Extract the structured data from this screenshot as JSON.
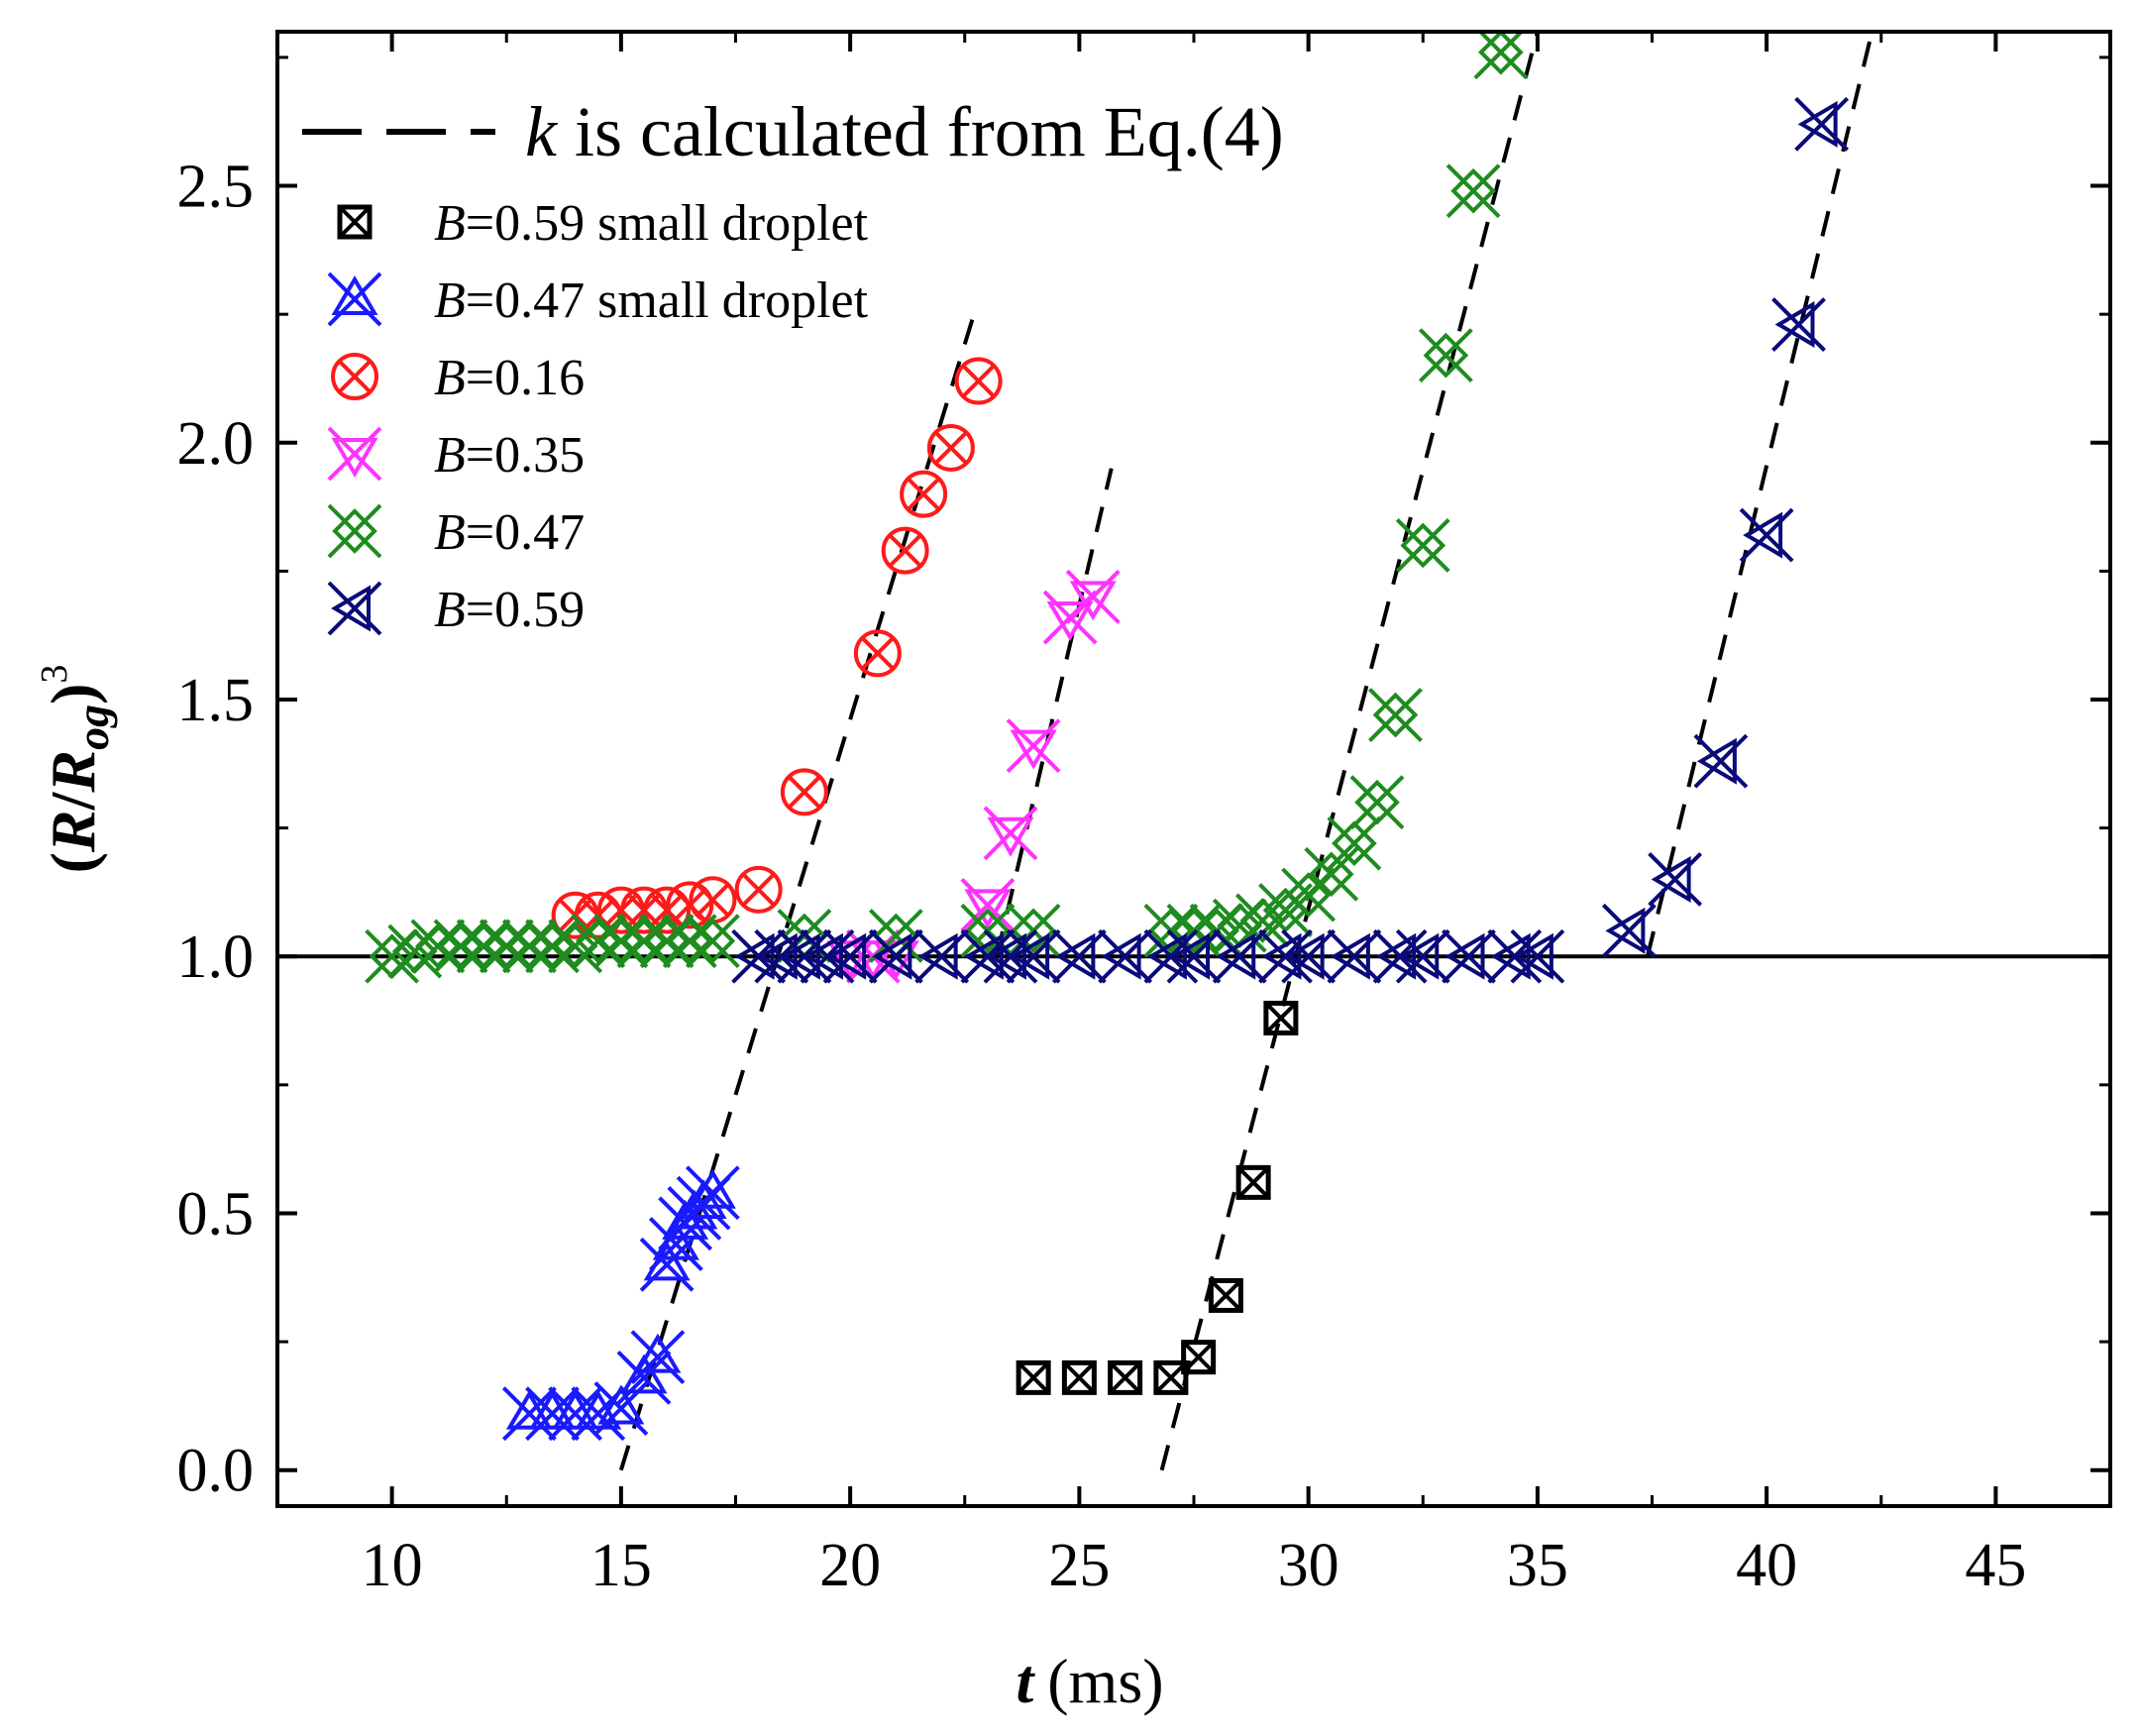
{
  "chart_data": {
    "type": "scatter",
    "xlabel": {
      "var": "t",
      "unit": "(ms)"
    },
    "ylabel": {
      "open": "(",
      "var1": "R",
      "slash": "/",
      "var2": "R",
      "sub": "og",
      "close": ")",
      "sup": "3"
    },
    "xlim": [
      7.5,
      47.5
    ],
    "ylim": [
      -0.07,
      2.8
    ],
    "xticks": [
      10,
      15,
      20,
      25,
      30,
      35,
      40,
      45
    ],
    "xtick_labels": [
      "10",
      "15",
      "20",
      "25",
      "30",
      "35",
      "40",
      "45"
    ],
    "yticks": [
      0.0,
      0.5,
      1.0,
      1.5,
      2.0,
      2.5
    ],
    "ytick_labels": [
      "0.0",
      "0.5",
      "1.0",
      "1.5",
      "2.0",
      "2.5"
    ],
    "grid": false,
    "legend_position": "top-left",
    "reference_line": {
      "y": 1.0,
      "color": "#000000"
    },
    "fit_line_legend": {
      "var": "k",
      "text": " is calculated from Eq.(4)"
    },
    "fit_lines": [
      {
        "points": [
          [
            15.0,
            0.0
          ],
          [
            22.7,
            2.25
          ]
        ]
      },
      {
        "points": [
          [
            23.2,
            1.0
          ],
          [
            25.7,
            1.95
          ]
        ]
      },
      {
        "points": [
          [
            26.8,
            0.0
          ],
          [
            35.0,
            2.8
          ]
        ]
      },
      {
        "points": [
          [
            37.4,
            1.0
          ],
          [
            42.3,
            2.8
          ]
        ]
      }
    ],
    "series": [
      {
        "name": "B",
        "name_suffix": "=0.59 small droplet",
        "marker": "boxed-x",
        "color": "#000000",
        "x": [
          24.0,
          25.0,
          26.0,
          27.0,
          27.6,
          28.2,
          28.8,
          29.4
        ],
        "y": [
          0.18,
          0.18,
          0.18,
          0.18,
          0.22,
          0.34,
          0.56,
          0.88
        ]
      },
      {
        "name": "B",
        "name_suffix": "=0.47 small droplet",
        "marker": "triangle-x",
        "color": "#1a1aff",
        "x": [
          13.0,
          13.5,
          14.0,
          14.5,
          15.0,
          15.5,
          15.8,
          16.0,
          16.2,
          16.4,
          16.6,
          16.8,
          17.0
        ],
        "y": [
          0.11,
          0.11,
          0.11,
          0.11,
          0.12,
          0.18,
          0.22,
          0.4,
          0.44,
          0.48,
          0.5,
          0.52,
          0.54
        ]
      },
      {
        "name": "B",
        "name_suffix": "=0.16",
        "marker": "circle-x",
        "color": "#ff1a1a",
        "x": [
          14.0,
          14.5,
          15.0,
          15.5,
          16.0,
          16.5,
          17.0,
          18.0,
          19.0,
          20.6,
          21.2,
          21.6,
          22.2,
          22.8
        ],
        "y": [
          1.08,
          1.08,
          1.09,
          1.09,
          1.09,
          1.1,
          1.11,
          1.13,
          1.32,
          1.59,
          1.79,
          1.9,
          1.99,
          2.12
        ]
      },
      {
        "name": "B",
        "name_suffix": "=0.35",
        "marker": "downtriangle-x",
        "color": "#ff33ff",
        "x": [
          20.0,
          20.5,
          21.0,
          23.0,
          23.5,
          24.0,
          24.8,
          25.3
        ],
        "y": [
          1.0,
          1.0,
          1.0,
          1.1,
          1.24,
          1.41,
          1.66,
          1.7
        ]
      },
      {
        "name": "B",
        "name_suffix": "=0.47",
        "marker": "double-x",
        "color": "#1e8c1e",
        "x": [
          10.0,
          10.5,
          11.0,
          11.5,
          12.0,
          12.5,
          13.0,
          13.5,
          14.0,
          14.5,
          15.0,
          15.5,
          16.0,
          16.5,
          17.0,
          19.0,
          21.0,
          23.0,
          24.0,
          27.0,
          27.5,
          28.0,
          28.5,
          29.0,
          29.5,
          30.0,
          30.5,
          31.0,
          31.5,
          31.9,
          32.5,
          33.0,
          33.6,
          34.2
        ],
        "y": [
          1.0,
          1.01,
          1.02,
          1.02,
          1.02,
          1.02,
          1.02,
          1.02,
          1.02,
          1.03,
          1.03,
          1.03,
          1.03,
          1.03,
          1.03,
          1.04,
          1.04,
          1.05,
          1.05,
          1.05,
          1.05,
          1.05,
          1.06,
          1.07,
          1.09,
          1.12,
          1.16,
          1.22,
          1.3,
          1.47,
          1.8,
          2.17,
          2.49,
          2.76
        ]
      },
      {
        "name": "B",
        "name_suffix": "=0.59",
        "marker": "lefttriangle-x",
        "color": "#0a0a7a",
        "x": [
          18.0,
          18.5,
          19.0,
          19.5,
          20.0,
          21.0,
          22.0,
          23.0,
          23.5,
          24.0,
          25.0,
          26.0,
          27.0,
          27.5,
          28.5,
          29.5,
          30.0,
          31.0,
          32.0,
          32.5,
          33.5,
          34.5,
          35.0,
          37.0,
          38.0,
          39.0,
          40.0,
          40.7,
          41.2
        ],
        "y": [
          1.0,
          1.0,
          1.0,
          1.0,
          1.0,
          1.0,
          1.0,
          1.0,
          1.0,
          1.0,
          1.0,
          1.0,
          1.0,
          1.0,
          1.0,
          1.0,
          1.0,
          1.0,
          1.0,
          1.0,
          1.0,
          1.0,
          1.0,
          1.05,
          1.15,
          1.38,
          1.82,
          2.23,
          2.62
        ]
      }
    ]
  }
}
